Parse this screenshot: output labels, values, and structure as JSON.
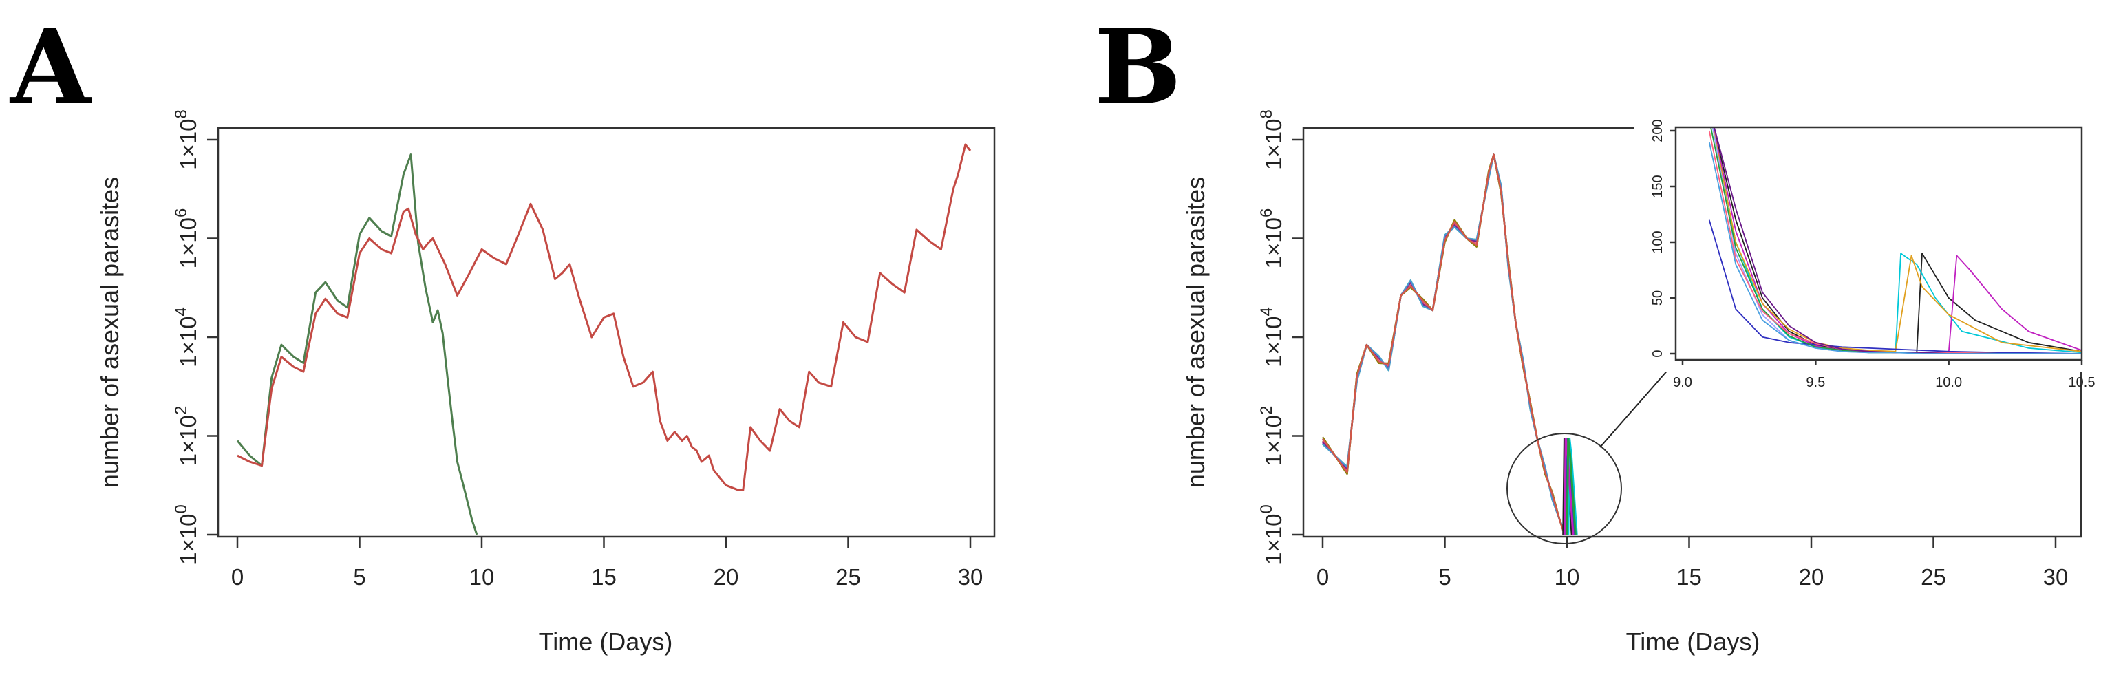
{
  "panels": [
    {
      "letter": "A",
      "xlabel": "Time (Days)",
      "ylabel": "number of asexual parasites"
    },
    {
      "letter": "B",
      "xlabel": "Time (Days)",
      "ylabel": "number of asexual parasites"
    }
  ],
  "chart_data": [
    {
      "type": "line",
      "panel": "A",
      "title": "",
      "xlabel": "Time (Days)",
      "ylabel": "number of asexual parasites",
      "xlim": [
        0,
        30
      ],
      "ylim_log10": [
        0,
        8
      ],
      "yscale": "log",
      "x_ticks": [
        "0",
        "5",
        "10",
        "15",
        "20",
        "25",
        "30"
      ],
      "y_ticks": [
        {
          "base": "1×10",
          "exp": "0"
        },
        {
          "base": "1×10",
          "exp": "2"
        },
        {
          "base": "1×10",
          "exp": "4"
        },
        {
          "base": "1×10",
          "exp": "6"
        },
        {
          "base": "1×10",
          "exp": "8"
        }
      ],
      "grid": false,
      "series": [
        {
          "color": "#4f7f4f",
          "x": [
            0,
            0.5,
            1.0,
            1.4,
            1.8,
            2.3,
            2.7,
            3.2,
            3.6,
            4.1,
            4.5,
            5.0,
            5.4,
            5.9,
            6.3,
            6.8,
            7.1,
            7.4,
            7.7,
            8.0,
            8.2,
            8.4,
            8.6,
            8.8,
            9.0,
            9.3,
            9.6,
            9.8
          ],
          "y": [
            80,
            40,
            25,
            1500,
            7000,
            4000,
            3000,
            80000,
            130000,
            55000,
            40000,
            1200000,
            2600000,
            1400000,
            1100000,
            20000000,
            50000000,
            800000,
            100000,
            20000,
            35000,
            12000,
            1500,
            200,
            30,
            8,
            2,
            1
          ]
        },
        {
          "color": "#c44a44",
          "x": [
            0,
            0.5,
            1.0,
            1.4,
            1.8,
            2.3,
            2.7,
            3.2,
            3.6,
            4.1,
            4.5,
            5.0,
            5.4,
            5.9,
            6.3,
            6.8,
            7.0,
            7.3,
            7.6,
            7.8,
            8.0,
            8.5,
            9.0,
            9.5,
            10.0,
            10.5,
            11.0,
            11.5,
            12.0,
            12.5,
            13.0,
            13.3,
            13.6,
            14.0,
            14.5,
            15.0,
            15.4,
            15.8,
            16.2,
            16.6,
            17.0,
            17.3,
            17.6,
            17.9,
            18.2,
            18.4,
            18.6,
            18.8,
            19.0,
            19.3,
            19.5,
            20.0,
            20.5,
            20.7,
            21.0,
            21.4,
            21.8,
            22.2,
            22.6,
            23.0,
            23.4,
            23.8,
            24.3,
            24.8,
            25.3,
            25.8,
            26.3,
            26.8,
            27.3,
            27.8,
            28.3,
            28.8,
            29.3,
            29.5,
            29.8,
            30.0
          ],
          "y": [
            40,
            30,
            25,
            900,
            4000,
            2500,
            2000,
            30000,
            60000,
            30000,
            25000,
            500000,
            1000000,
            600000,
            500000,
            3500000,
            4000000,
            1200000,
            600000,
            800000,
            1000000,
            300000,
            70000,
            200000,
            600000,
            400000,
            300000,
            1200000,
            5000000,
            1500000,
            150000,
            200000,
            300000,
            60000,
            10000,
            25000,
            30000,
            4000,
            1000,
            1200,
            2000,
            200,
            80,
            120,
            80,
            100,
            60,
            50,
            30,
            40,
            20,
            10,
            8,
            8,
            150,
            80,
            50,
            350,
            200,
            150,
            2000,
            1200,
            1000,
            20000,
            10000,
            8000,
            200000,
            120000,
            80000,
            1500000,
            900000,
            600000,
            10000000,
            20000000,
            80000000,
            60000000
          ]
        }
      ]
    },
    {
      "type": "line",
      "panel": "B",
      "title": "",
      "xlabel": "Time (Days)",
      "ylabel": "number of asexual parasites",
      "xlim": [
        0,
        30
      ],
      "ylim_log10": [
        0,
        8
      ],
      "yscale": "log",
      "x_ticks": [
        "0",
        "5",
        "10",
        "15",
        "20",
        "25",
        "30"
      ],
      "y_ticks": [
        {
          "base": "1×10",
          "exp": "0"
        },
        {
          "base": "1×10",
          "exp": "2"
        },
        {
          "base": "1×10",
          "exp": "4"
        },
        {
          "base": "1×10",
          "exp": "6"
        },
        {
          "base": "1×10",
          "exp": "8"
        }
      ],
      "grid": false,
      "series_colors": [
        "#222222",
        "#3030c0",
        "#00c8d8",
        "#c020c0",
        "#20a040",
        "#e0a020",
        "#a0a0ff",
        "#ff6080",
        "#6a1a8a",
        "#4aa0e0",
        "#808000",
        "#e05050"
      ],
      "common_path": {
        "x": [
          0,
          0.5,
          1.0,
          1.4,
          1.8,
          2.3,
          2.7,
          3.2,
          3.6,
          4.1,
          4.5,
          5.0,
          5.4,
          5.9,
          6.3,
          6.8,
          7.0,
          7.3,
          7.6,
          7.9,
          8.2,
          8.5,
          8.8,
          9.1,
          9.4,
          9.7,
          9.9
        ],
        "y": [
          80,
          40,
          20,
          1500,
          7000,
          3500,
          2500,
          70000,
          120000,
          50000,
          35000,
          1000000,
          2000000,
          1000000,
          800000,
          20000000,
          50000000,
          10000000,
          300000,
          20000,
          3000,
          400,
          80,
          20,
          6,
          2,
          1
        ]
      },
      "recrudescence_day": [
        9.9,
        10.0,
        10.1,
        9.95,
        10.05
      ],
      "inset": {
        "xlim": [
          9.0,
          10.5
        ],
        "ylim": [
          0,
          200
        ],
        "x_ticks": [
          "9.0",
          "9.5",
          "10.0",
          "10.5"
        ],
        "y_ticks": [
          "0",
          "50",
          "100",
          "150",
          "200"
        ],
        "series": [
          {
            "color": "#222222",
            "x": [
              9.1,
              9.2,
              9.3,
              9.4,
              9.5,
              9.6,
              9.7,
              9.8,
              9.88,
              9.9,
              9.95,
              10.0,
              10.1,
              10.3,
              10.5
            ],
            "y": [
              260,
              120,
              50,
              20,
              8,
              3,
              2,
              1,
              1,
              90,
              70,
              50,
              30,
              10,
              2
            ]
          },
          {
            "color": "#00c8d8",
            "x": [
              9.1,
              9.2,
              9.3,
              9.4,
              9.5,
              9.6,
              9.7,
              9.8,
              9.82,
              9.88,
              9.95,
              10.05,
              10.3,
              10.5
            ],
            "y": [
              240,
              100,
              40,
              15,
              6,
              3,
              2,
              1,
              90,
              80,
              50,
              20,
              5,
              1
            ]
          },
          {
            "color": "#c020c0",
            "x": [
              9.1,
              9.2,
              9.3,
              9.4,
              9.5,
              9.6,
              9.7,
              9.8,
              9.9,
              10.0,
              10.03,
              10.08,
              10.2,
              10.3,
              10.5
            ],
            "y": [
              250,
              110,
              45,
              18,
              7,
              3,
              2,
              1,
              1,
              1,
              88,
              75,
              40,
              20,
              3
            ]
          },
          {
            "color": "#e0a020",
            "x": [
              9.1,
              9.2,
              9.3,
              9.4,
              9.5,
              9.6,
              9.7,
              9.8,
              9.86,
              9.9,
              10.0,
              10.2,
              10.5
            ],
            "y": [
              230,
              100,
              45,
              22,
              10,
              5,
              3,
              2,
              88,
              60,
              35,
              10,
              2
            ]
          },
          {
            "color": "#a0a0ff",
            "x": [
              9.1,
              9.2,
              9.3,
              9.4,
              9.5,
              9.6,
              9.7,
              9.8,
              9.9,
              10.0,
              10.2,
              10.5
            ],
            "y": [
              220,
              90,
              35,
              12,
              5,
              2,
              1,
              1,
              1,
              1,
              1,
              0
            ]
          },
          {
            "color": "#3030c0",
            "x": [
              9.1,
              9.2,
              9.3,
              9.4,
              9.5,
              9.6,
              9.7,
              9.8,
              9.9,
              10.0,
              10.2,
              10.5
            ],
            "y": [
              120,
              40,
              15,
              10,
              8,
              6,
              5,
              4,
              3,
              2,
              1,
              0
            ]
          },
          {
            "color": "#20a040",
            "x": [
              9.1,
              9.2,
              9.3,
              9.4,
              9.5,
              9.6,
              9.7,
              9.8,
              9.9,
              10.0,
              10.2,
              10.5
            ],
            "y": [
              210,
              95,
              40,
              16,
              6,
              3,
              1,
              1,
              1,
              1,
              0,
              0
            ]
          },
          {
            "color": "#ff6080",
            "x": [
              9.1,
              9.2,
              9.3,
              9.4,
              9.5,
              9.6,
              9.7,
              9.8,
              9.9,
              10.0,
              10.2,
              10.5
            ],
            "y": [
              200,
              85,
              38,
              18,
              9,
              4,
              2,
              1,
              1,
              1,
              0,
              0
            ]
          },
          {
            "color": "#6a1a8a",
            "x": [
              9.1,
              9.2,
              9.3,
              9.4,
              9.5,
              9.6,
              9.7,
              9.8,
              9.9,
              10.0,
              10.2,
              10.5
            ],
            "y": [
              260,
              130,
              55,
              25,
              10,
              4,
              2,
              1,
              1,
              0,
              0,
              0
            ]
          },
          {
            "color": "#4aa0e0",
            "x": [
              9.1,
              9.2,
              9.3,
              9.4,
              9.5,
              9.6,
              9.7,
              9.8,
              9.9,
              10.0,
              10.2,
              10.5
            ],
            "y": [
              190,
              80,
              30,
              12,
              5,
              2,
              1,
              1,
              0,
              0,
              0,
              0
            ]
          }
        ]
      }
    }
  ]
}
